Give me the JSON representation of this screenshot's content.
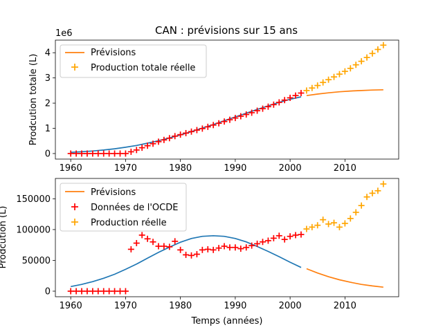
{
  "figure": {
    "title": "CAN : prévisions sur 15 ans"
  },
  "chart_data": [
    {
      "type": "line",
      "title": "CAN : prévisions sur 15 ans",
      "ylabel": "Prodcution totale (L)",
      "offset_text": "1e6",
      "xlim": [
        1957.2,
        2019.8
      ],
      "ylim": [
        -0.22,
        4.5
      ],
      "x_ticks": [
        1960,
        1970,
        1980,
        1990,
        2000,
        2010
      ],
      "y_ticks": [
        0,
        1,
        2,
        3,
        4
      ],
      "grid": false,
      "legend": {
        "position": "top-left",
        "entries": [
          {
            "label": "Prévisions",
            "color": "#ff7f0e",
            "marker": "line"
          },
          {
            "label": "Production totale réelle",
            "color": "#ffa500",
            "marker": "+"
          }
        ]
      },
      "series": [
        {
          "name": "",
          "kind": "line",
          "color": "#1f77b4",
          "x": [
            1960,
            1962,
            1964,
            1966,
            1968,
            1970,
            1972,
            1974,
            1976,
            1978,
            1980,
            1982,
            1984,
            1986,
            1988,
            1990,
            1992,
            1994,
            1996,
            1998,
            2000,
            2002
          ],
          "y": [
            0.05,
            0.07,
            0.1,
            0.14,
            0.19,
            0.25,
            0.32,
            0.41,
            0.51,
            0.62,
            0.74,
            0.87,
            1.01,
            1.15,
            1.3,
            1.45,
            1.6,
            1.75,
            1.89,
            2.03,
            2.15,
            2.25
          ]
        },
        {
          "name": "Prévisions",
          "kind": "line",
          "color": "#ff7f0e",
          "x": [
            2003,
            2005,
            2007,
            2009,
            2011,
            2013,
            2015,
            2017
          ],
          "y": [
            2.3,
            2.36,
            2.41,
            2.45,
            2.48,
            2.5,
            2.52,
            2.53
          ]
        },
        {
          "name": "",
          "kind": "scatter",
          "color": "#ff0000",
          "x": [
            1960,
            1961,
            1962,
            1963,
            1964,
            1965,
            1966,
            1967,
            1968,
            1969,
            1970,
            1971,
            1972,
            1973,
            1974,
            1975,
            1976,
            1977,
            1978,
            1979,
            1980,
            1981,
            1982,
            1983,
            1984,
            1985,
            1986,
            1987,
            1988,
            1989,
            1990,
            1991,
            1992,
            1993,
            1994,
            1995,
            1996,
            1997,
            1998,
            1999,
            2000,
            2001,
            2002
          ],
          "y": [
            0,
            0,
            0,
            0,
            0,
            0,
            0,
            0,
            0,
            0,
            0,
            0.07,
            0.14,
            0.23,
            0.31,
            0.39,
            0.47,
            0.54,
            0.61,
            0.69,
            0.75,
            0.81,
            0.87,
            0.93,
            0.99,
            1.06,
            1.13,
            1.2,
            1.27,
            1.34,
            1.41,
            1.48,
            1.55,
            1.62,
            1.7,
            1.78,
            1.86,
            1.94,
            2.03,
            2.12,
            2.21,
            2.3,
            2.4
          ]
        },
        {
          "name": "Production totale réelle",
          "kind": "scatter",
          "color": "#ffa500",
          "x": [
            2003,
            2004,
            2005,
            2006,
            2007,
            2008,
            2009,
            2010,
            2011,
            2012,
            2013,
            2014,
            2015,
            2016,
            2017
          ],
          "y": [
            2.5,
            2.6,
            2.7,
            2.82,
            2.93,
            3.04,
            3.15,
            3.26,
            3.38,
            3.52,
            3.66,
            3.81,
            3.97,
            4.13,
            4.3
          ]
        }
      ]
    },
    {
      "type": "line",
      "title": "",
      "ylabel": "Prodcution (L)",
      "xlabel": "Temps (années)",
      "xlim": [
        1957.2,
        2019.8
      ],
      "ylim": [
        -9000,
        183000
      ],
      "x_ticks": [
        1960,
        1970,
        1980,
        1990,
        2000,
        2010
      ],
      "y_ticks": [
        0,
        50000,
        100000,
        150000
      ],
      "grid": false,
      "legend": {
        "position": "top-left",
        "entries": [
          {
            "label": "Prévisions",
            "color": "#ff7f0e",
            "marker": "line"
          },
          {
            "label": "Données de l'OCDE",
            "color": "#ff0000",
            "marker": "+"
          },
          {
            "label": "Production réelle",
            "color": "#ffa500",
            "marker": "+"
          }
        ]
      },
      "series": [
        {
          "name": "",
          "kind": "line",
          "color": "#1f77b4",
          "x": [
            1960,
            1962,
            1964,
            1966,
            1968,
            1970,
            1972,
            1974,
            1976,
            1978,
            1980,
            1982,
            1984,
            1986,
            1988,
            1990,
            1992,
            1994,
            1996,
            1998,
            2000,
            2002
          ],
          "y": [
            7500,
            11000,
            15500,
            21000,
            27500,
            35500,
            44000,
            53500,
            63000,
            71500,
            79500,
            85500,
            89000,
            90000,
            89000,
            85500,
            80000,
            72500,
            64500,
            56000,
            47000,
            38500
          ]
        },
        {
          "name": "Prévisions",
          "kind": "line",
          "color": "#ff7f0e",
          "x": [
            2003,
            2005,
            2007,
            2009,
            2011,
            2013,
            2015,
            2017
          ],
          "y": [
            36500,
            29500,
            23500,
            18500,
            14500,
            11000,
            8500,
            6500
          ]
        },
        {
          "name": "Données de l'OCDE",
          "kind": "scatter",
          "color": "#ff0000",
          "x": [
            1960,
            1961,
            1962,
            1963,
            1964,
            1965,
            1966,
            1967,
            1968,
            1969,
            1970,
            1971,
            1972,
            1973,
            1974,
            1975,
            1976,
            1977,
            1978,
            1979,
            1980,
            1981,
            1982,
            1983,
            1984,
            1985,
            1986,
            1987,
            1988,
            1989,
            1990,
            1991,
            1992,
            1993,
            1994,
            1995,
            1996,
            1997,
            1998,
            1999,
            2000,
            2001,
            2002
          ],
          "y": [
            0,
            0,
            0,
            0,
            0,
            0,
            0,
            0,
            0,
            0,
            0,
            68000,
            78000,
            91000,
            85000,
            80000,
            73000,
            73000,
            72000,
            81000,
            67000,
            59000,
            58000,
            60000,
            67000,
            68000,
            67000,
            70000,
            73000,
            71000,
            71000,
            69000,
            71000,
            74000,
            77000,
            80000,
            82000,
            86000,
            90000,
            84000,
            89000,
            91000,
            92000
          ]
        },
        {
          "name": "Production réelle",
          "kind": "scatter",
          "color": "#ffa500",
          "x": [
            2003,
            2004,
            2005,
            2006,
            2007,
            2008,
            2009,
            2010,
            2011,
            2012,
            2013,
            2014,
            2015,
            2016,
            2017
          ],
          "y": [
            101000,
            104000,
            107000,
            116000,
            109000,
            111000,
            104000,
            110000,
            118000,
            128000,
            139000,
            153000,
            159000,
            163000,
            174000
          ]
        }
      ]
    }
  ]
}
